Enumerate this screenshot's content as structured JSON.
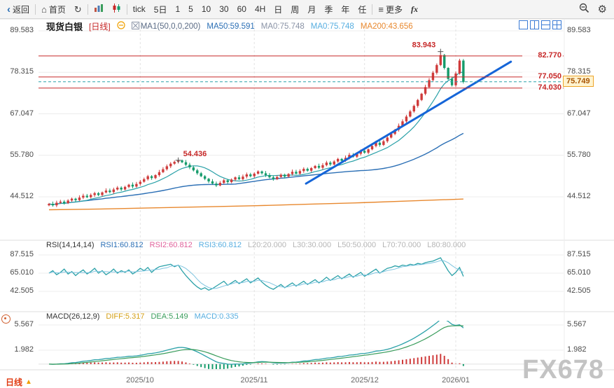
{
  "toolbar": {
    "back": "返回",
    "home": "首页",
    "tick": "tick",
    "d5": "5日",
    "m1": "1",
    "m5": "5",
    "m10": "10",
    "m30": "30",
    "m60": "60",
    "h4": "4H",
    "day": "日",
    "week": "周",
    "month": "月",
    "quarter": "季",
    "year": "年",
    "custom": "任",
    "more": "更多",
    "fx": "fx"
  },
  "header": {
    "symbol": "现货白银",
    "period_tag": "[日线]",
    "ma_group": "MA1(50,0,0,200)",
    "ma50": "MA50:59.591",
    "ma0a": "MA0:75.748",
    "ma0b": "MA0:75.748",
    "ma200": "MA200:43.656"
  },
  "rsi": {
    "title": "RSI(14,14,14)",
    "r1": "RSI1:60.812",
    "r2": "RSI2:60.812",
    "r3": "RSI3:60.812",
    "l20": "L20:20.000",
    "l30": "L30:30.000",
    "l50": "L50:50.000",
    "l70": "L70:70.000",
    "l80": "L80:80.000"
  },
  "macd": {
    "title": "MACD(26,12,9)",
    "diff": "DIFF:5.317",
    "dea": "DEA:5.149",
    "m": "MACD:0.335"
  },
  "axes": {
    "main": [
      "89.583",
      "78.315",
      "67.047",
      "55.780",
      "44.512"
    ],
    "rsi": [
      "87.515",
      "65.010",
      "42.505"
    ],
    "macd": [
      "5.567",
      "1.982"
    ]
  },
  "levels": {
    "r1": "82.770",
    "r2": "77.050",
    "r3": "74.030",
    "current": "75.749"
  },
  "footer": {
    "period": "日线",
    "dates": [
      "2025/10",
      "2025/11",
      "2025/12",
      "2026/01"
    ]
  },
  "watermark": "FX678",
  "chart_data": {
    "type": "candlestick",
    "title": "现货白银 日线",
    "closes": [
      42.6,
      42.2,
      42.9,
      43.2,
      42.8,
      43.5,
      44.0,
      43.6,
      44.3,
      44.8,
      44.4,
      45.0,
      45.5,
      45.0,
      45.7,
      46.2,
      45.8,
      46.5,
      47.0,
      46.5,
      47.2,
      47.8,
      47.3,
      48.0,
      48.6,
      49.3,
      50.1,
      49.6,
      50.4,
      51.2,
      52.0,
      52.8,
      53.5,
      54.0,
      54.4,
      53.9,
      53.2,
      52.5,
      51.7,
      50.9,
      50.1,
      49.4,
      48.7,
      48.1,
      47.6,
      48.3,
      49.0,
      48.5,
      49.2,
      49.8,
      49.3,
      50.0,
      50.6,
      50.1,
      50.8,
      51.4,
      50.9,
      50.4,
      49.8,
      49.3,
      49.9,
      50.5,
      50.0,
      50.7,
      51.3,
      50.8,
      51.5,
      52.1,
      51.6,
      52.3,
      52.9,
      52.4,
      53.1,
      53.8,
      53.3,
      54.1,
      54.8,
      54.3,
      55.1,
      55.9,
      55.4,
      56.2,
      57.0,
      56.5,
      57.4,
      58.3,
      59.2,
      58.6,
      59.6,
      60.6,
      61.6,
      62.7,
      63.8,
      65.0,
      66.3,
      67.7,
      69.2,
      70.8,
      72.5,
      74.3,
      76.2,
      78.2,
      80.3,
      83.0,
      79.5,
      76.5,
      74.8,
      78.0,
      81.5,
      75.7
    ],
    "rsi": [
      65,
      68,
      63,
      66,
      70,
      64,
      67,
      62,
      66,
      69,
      64,
      67,
      71,
      65,
      68,
      63,
      66,
      70,
      65,
      68,
      66,
      69,
      64,
      67,
      71,
      68,
      72,
      66,
      70,
      73,
      74,
      75,
      76,
      73,
      75,
      68,
      62,
      57,
      52,
      48,
      45,
      47,
      44,
      46,
      49,
      52,
      55,
      50,
      53,
      56,
      52,
      55,
      58,
      53,
      56,
      59,
      54,
      50,
      47,
      45,
      48,
      51,
      47,
      50,
      53,
      49,
      52,
      55,
      51,
      54,
      57,
      53,
      56,
      60,
      56,
      59,
      62,
      58,
      61,
      64,
      60,
      63,
      66,
      61,
      64,
      67,
      70,
      65,
      68,
      71,
      72,
      74,
      73,
      75,
      74,
      76,
      75,
      77,
      76,
      78,
      79,
      80,
      82,
      84,
      76,
      68,
      62,
      66,
      72,
      61
    ],
    "ma200": [
      41.0,
      41.2,
      41.5,
      41.8,
      42.1,
      42.5,
      42.9,
      43.4,
      43.9
    ],
    "levels": [
      82.77,
      77.05,
      74.03
    ],
    "current": 75.749,
    "trendline": {
      "i1": 67.6,
      "v1": 48.1,
      "i2": 121.5,
      "v2": 81.2
    },
    "annotations": [
      {
        "index": 34,
        "value": 54.436,
        "label": "54.436"
      },
      {
        "index": 103,
        "value": 83.943,
        "label": "83.943"
      }
    ],
    "month_ticks": [
      {
        "index": 24,
        "label": "2025/10"
      },
      {
        "index": 54,
        "label": "2025/11"
      },
      {
        "index": 83,
        "label": "2025/12"
      },
      {
        "index": 107,
        "label": "2026/01"
      }
    ],
    "main_axis": [
      89.583,
      78.315,
      67.047,
      55.78,
      44.512
    ],
    "rsi_axis": [
      87.515,
      65.01,
      42.505
    ],
    "macd_axis": [
      5.567,
      1.982
    ],
    "macd_params": "26,12,9",
    "rsi_params": "14,14,14"
  }
}
